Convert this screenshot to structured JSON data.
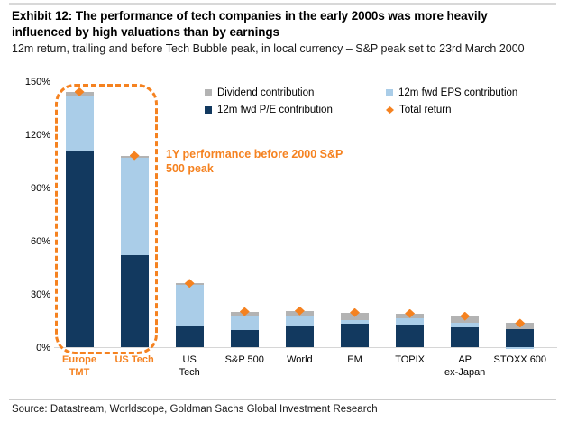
{
  "header": {
    "title_lines": [
      "Exhibit 12: The performance of tech companies in the early 2000s was more heavily",
      "influenced by high valuations than by earnings"
    ],
    "subtitle": "12m return, trailing and before Tech Bubble peak, in local currency – S&P peak set to 23rd March 2000"
  },
  "source": "Source: Datastream, Worldscope, Goldman Sachs Global Investment Research",
  "colors": {
    "pe_navy": "#12395f",
    "eps_light_blue": "#aacde8",
    "dividend_gray": "#b3b3b3",
    "total_return_orange": "#f58220",
    "axis_gray": "#d6d6d6"
  },
  "chart_data": {
    "type": "bar",
    "stacked": true,
    "title": "12m return, trailing and before Tech Bubble peak, in local currency – S&P peak set to 23rd March 2000",
    "categories": [
      "Europe TMT",
      "US Tech",
      "US Tech",
      "S&P 500",
      "World",
      "EM",
      "TOPIX",
      "AP ex-Japan",
      "STOXX 600"
    ],
    "category_lines": [
      [
        "Europe",
        "TMT"
      ],
      [
        "US Tech"
      ],
      [
        "US",
        "Tech"
      ],
      [
        "S&P 500"
      ],
      [
        "World"
      ],
      [
        "EM"
      ],
      [
        "TOPIX"
      ],
      [
        "AP",
        "ex-Japan"
      ],
      [
        "STOXX 600"
      ]
    ],
    "highlighted_category_indexes": [
      0,
      1
    ],
    "series": [
      {
        "name": "12m fwd P/E contribution",
        "color": "#12395f",
        "values": [
          111,
          52,
          12,
          9.5,
          11.5,
          13,
          12.5,
          11,
          10
        ]
      },
      {
        "name": "12m fwd EPS contribution",
        "color": "#aacde8",
        "values": [
          31,
          55,
          23,
          8.5,
          6.5,
          2.5,
          4,
          2.5,
          -1
        ]
      },
      {
        "name": "Dividend contribution",
        "color": "#b3b3b3",
        "values": [
          2,
          1,
          1,
          2,
          2.5,
          4,
          2.5,
          4,
          3.5
        ]
      }
    ],
    "total_return": {
      "name": "Total return",
      "marker": "diamond",
      "color": "#f58220",
      "values": [
        144,
        108,
        36,
        20,
        20.5,
        19.5,
        19,
        17.5,
        13.5
      ]
    },
    "ylim": [
      0,
      150
    ],
    "yticks": {
      "labels": [
        "0%",
        "30%",
        "60%",
        "90%",
        "120%",
        "150%"
      ],
      "values": [
        0,
        30,
        60,
        90,
        120,
        150
      ]
    },
    "grid": false,
    "legend_position": "top",
    "legend": [
      {
        "label": "Dividend contribution",
        "color": "#b3b3b3",
        "shape": "square"
      },
      {
        "label": "12m fwd EPS contribution",
        "color": "#aacde8",
        "shape": "square"
      },
      {
        "label": "12m fwd P/E contribution",
        "color": "#12395f",
        "shape": "square"
      },
      {
        "label": "Total return",
        "color": "#f58220",
        "shape": "diamond"
      }
    ],
    "annotation": "1Y performance before 2000 S&P 500 peak"
  }
}
